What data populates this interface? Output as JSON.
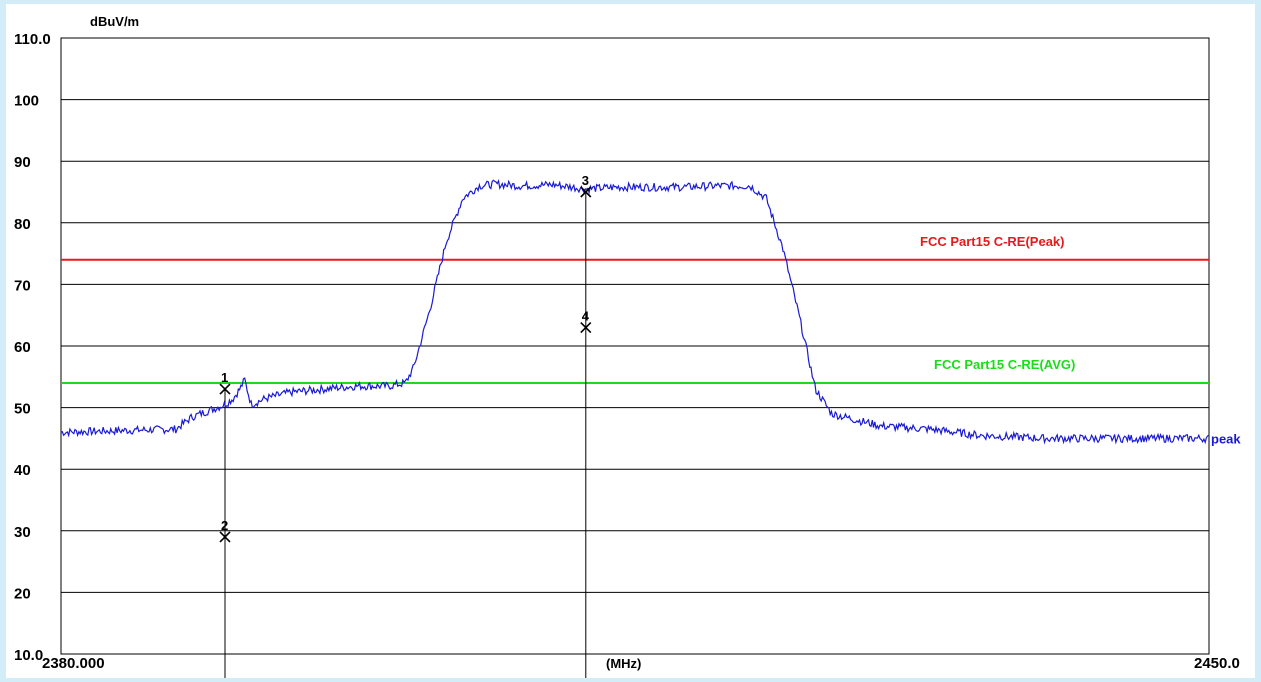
{
  "chart_data": {
    "type": "line",
    "ylabel": "dBuV/m",
    "xlabel": "(MHz)",
    "xlim": [
      2380.0,
      2450.0
    ],
    "ylim": [
      10.0,
      110.0
    ],
    "x_tick_labels": [
      "2380.000",
      "2450.0"
    ],
    "y_tick_labels": [
      "10.0",
      "20",
      "30",
      "40",
      "50",
      "60",
      "70",
      "80",
      "90",
      "100",
      "110.0"
    ],
    "grid": true,
    "series": [
      {
        "name": "peak",
        "color": "#1a1ad6",
        "x": [
          2380.0,
          2384.0,
          2387.0,
          2388.0,
          2389.0,
          2390.0,
          2390.5,
          2390.9,
          2391.2,
          2391.6,
          2392.5,
          2394.0,
          2396.0,
          2398.0,
          2400.0,
          2401.0,
          2401.5,
          2402.5,
          2403.5,
          2404.5,
          2405.5,
          2406.5,
          2408.0,
          2410.0,
          2412.0,
          2414.0,
          2416.0,
          2418.0,
          2420.0,
          2422.0,
          2423.0,
          2424.0,
          2425.0,
          2426.0,
          2427.0,
          2428.5,
          2430.0,
          2433.0,
          2436.0,
          2440.0,
          2444.0,
          2448.0,
          2450.0
        ],
        "y": [
          46.0,
          46.3,
          46.5,
          48.5,
          49.5,
          50.5,
          51.5,
          53.0,
          54.5,
          50.5,
          51.5,
          52.5,
          53.0,
          53.5,
          53.5,
          54.0,
          56.5,
          66.0,
          77.0,
          84.0,
          86.0,
          86.3,
          86.0,
          86.2,
          85.5,
          85.8,
          85.8,
          85.8,
          86.0,
          86.0,
          84.0,
          76.0,
          65.0,
          53.0,
          49.0,
          48.0,
          47.0,
          46.5,
          45.5,
          45.0,
          45.0,
          45.0,
          45.0
        ]
      }
    ],
    "limit_lines": [
      {
        "name": "FCC Part15 C-RE(Peak)",
        "value": 74.0,
        "color": "#e8181c"
      },
      {
        "name": "FCC Part15 C-RE(AVG)",
        "value": 54.0,
        "color": "#1adc1a"
      }
    ],
    "markers": [
      {
        "label": "1",
        "x": 2390.0,
        "y": 53.0
      },
      {
        "label": "2",
        "x": 2390.0,
        "y": 29.0
      },
      {
        "label": "3",
        "x": 2412.0,
        "y": 85.0
      },
      {
        "label": "4",
        "x": 2412.0,
        "y": 63.0
      }
    ]
  }
}
